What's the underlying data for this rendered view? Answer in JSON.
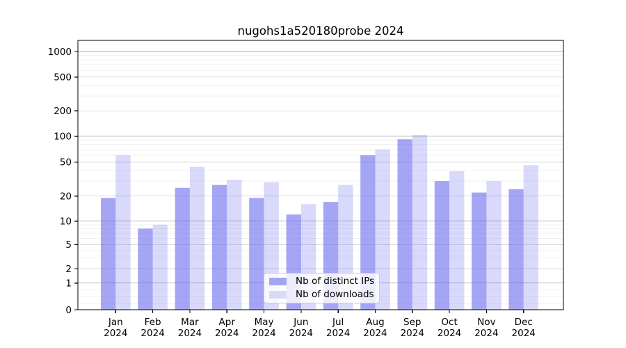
{
  "chart_data": {
    "type": "bar",
    "title": "nugohs1a520180probe 2024",
    "categories": [
      "Jan",
      "Feb",
      "Mar",
      "Apr",
      "May",
      "Jun",
      "Jul",
      "Aug",
      "Sep",
      "Oct",
      "Nov",
      "Dec"
    ],
    "category_year": "2024",
    "series": [
      {
        "name": "Nb of distinct IPs",
        "color": "#6969f0",
        "alpha": 0.6,
        "effective_hex": "#a5a5ee",
        "values": [
          19,
          8,
          25,
          27,
          19,
          12,
          17,
          60,
          92,
          30,
          22,
          24
        ]
      },
      {
        "name": "Nb of downloads",
        "color": "#6969f0",
        "alpha": 0.25,
        "effective_hex": "#d9d9f8",
        "values": [
          60,
          9,
          44,
          31,
          29,
          16,
          27,
          70,
          103,
          39,
          30,
          46
        ]
      }
    ],
    "xlabel": "",
    "ylabel": "",
    "yscale": "symlog",
    "ylim": [
      0,
      1350
    ],
    "yticks": [
      0,
      1,
      2,
      5,
      10,
      20,
      50,
      100,
      200,
      500,
      1000
    ],
    "grid": "both",
    "legend_position": "lower center"
  }
}
